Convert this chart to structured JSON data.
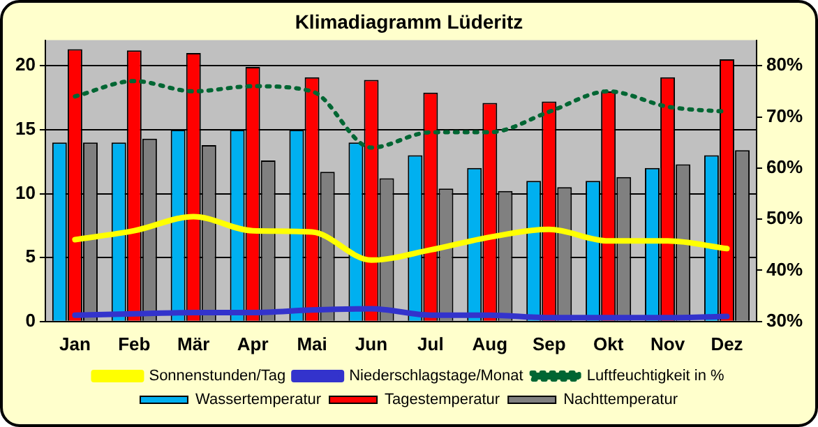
{
  "chart_data": {
    "type": "bar",
    "title": "Klimadiagramm Lüderitz",
    "categories": [
      "Jan",
      "Feb",
      "Mär",
      "Apr",
      "Mai",
      "Jun",
      "Jul",
      "Aug",
      "Sep",
      "Okt",
      "Nov",
      "Dez"
    ],
    "series": [
      {
        "name": "Wassertemperatur",
        "color": "#00b0f0",
        "values": [
          14,
          14,
          15,
          15,
          15,
          14,
          13,
          12,
          11,
          11,
          12,
          13
        ]
      },
      {
        "name": "Tagestemperatur",
        "color": "#ff0000",
        "values": [
          21.3,
          21.2,
          21,
          19.9,
          19.1,
          18.9,
          17.9,
          17.1,
          17.2,
          18,
          19.1,
          20.5
        ]
      },
      {
        "name": "Nachttemperatur",
        "color": "#808080",
        "values": [
          14,
          14.3,
          13.8,
          12.6,
          11.7,
          11.2,
          10.4,
          10.2,
          10.5,
          11.3,
          12.3,
          13.4
        ]
      },
      {
        "name": "Sonnenstunden/Tag",
        "type": "line",
        "color": "#ffff00",
        "line_style": "solid",
        "values": [
          6.4,
          7.1,
          8.2,
          7.1,
          7,
          4.8,
          5.6,
          6.6,
          7.2,
          6.3,
          6.3,
          5.7
        ]
      },
      {
        "name": "Niederschlagstage/Monat",
        "type": "line",
        "color": "#3333cc",
        "line_style": "solid",
        "values": [
          0.5,
          0.6,
          0.7,
          0.7,
          0.9,
          1,
          0.5,
          0.5,
          0.3,
          0.3,
          0.3,
          0.4
        ]
      },
      {
        "name": "Luftfeuchtigkeit in %",
        "type": "line",
        "axis": "y2",
        "color": "#006633",
        "line_style": "dotted",
        "values": [
          74,
          77,
          75,
          76,
          75,
          64,
          67,
          67,
          71,
          75,
          72,
          71
        ]
      }
    ],
    "ylim": [
      0,
      22
    ],
    "yticks": [
      0,
      5,
      10,
      15,
      20
    ],
    "y2lim": [
      30,
      85
    ],
    "y2ticks": [
      {
        "value": 30,
        "label": "30%"
      },
      {
        "value": 40,
        "label": "40%"
      },
      {
        "value": 50,
        "label": "50%"
      },
      {
        "value": 60,
        "label": "60%"
      },
      {
        "value": 70,
        "label": "70%"
      },
      {
        "value": 80,
        "label": "80%"
      }
    ],
    "grid": "y",
    "legend": "bottom",
    "marker": "none"
  }
}
